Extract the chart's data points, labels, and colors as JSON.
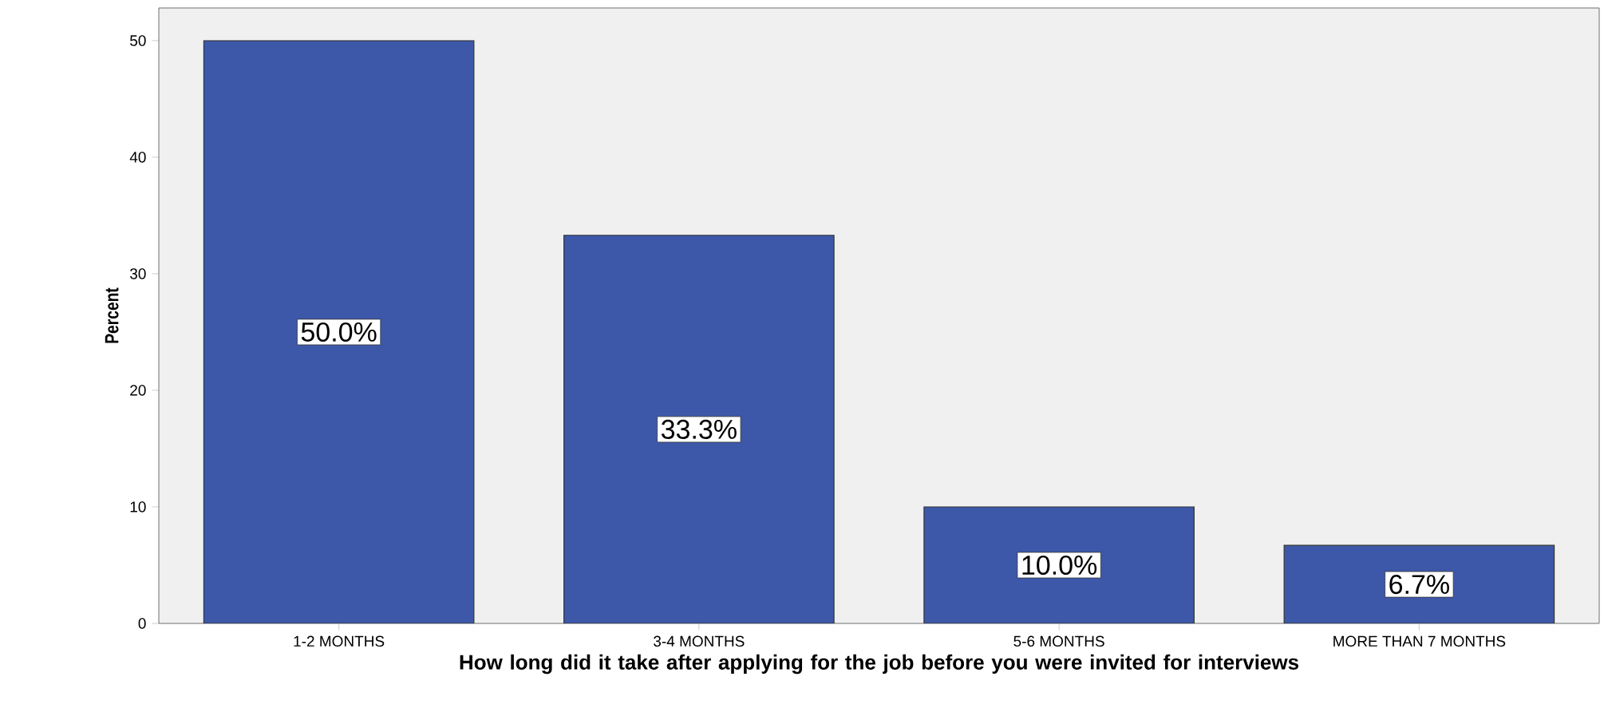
{
  "chart_data": {
    "type": "bar",
    "xlabel": "How long did it take after applying for the job before you were invited for interviews",
    "ylabel": "Percent",
    "categories": [
      "1-2 MONTHS",
      "3-4 MONTHS",
      "5-6 MONTHS",
      "MORE THAN 7 MONTHS"
    ],
    "values": [
      50.0,
      33.3,
      10.0,
      6.7
    ],
    "value_labels": [
      "50.0%",
      "33.3%",
      "10.0%",
      "6.7%"
    ],
    "color": "#3d58a8",
    "ylim": [
      0,
      52.8
    ],
    "yticks": [
      0,
      10,
      20,
      30,
      40,
      50
    ]
  }
}
